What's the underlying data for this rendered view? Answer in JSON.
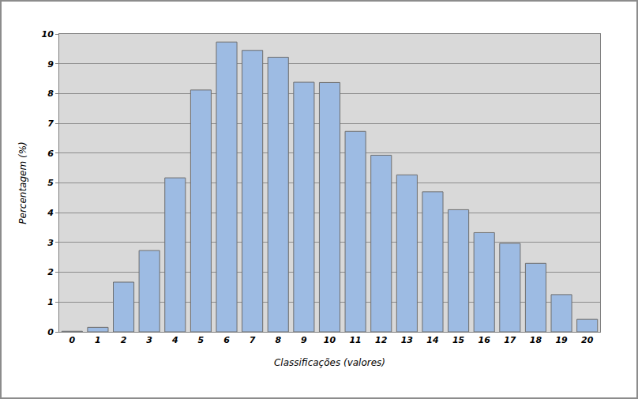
{
  "chart_data": {
    "type": "bar",
    "x_label": "Classificações (valores)",
    "y_label": "Percentagem (%)",
    "categories": [
      "0",
      "1",
      "2",
      "3",
      "4",
      "5",
      "6",
      "7",
      "8",
      "9",
      "10",
      "11",
      "12",
      "13",
      "14",
      "15",
      "16",
      "17",
      "18",
      "19",
      "20"
    ],
    "values": [
      0.02,
      0.15,
      1.67,
      2.73,
      5.17,
      8.12,
      9.73,
      9.45,
      9.22,
      8.38,
      8.37,
      6.73,
      5.93,
      5.27,
      4.7,
      4.1,
      3.33,
      2.97,
      2.3,
      1.25,
      0.42
    ],
    "color": "#9dbbe3",
    "ylim": [
      0,
      10
    ],
    "yticks": [
      0,
      1,
      2,
      3,
      4,
      5,
      6,
      7,
      8,
      9,
      10
    ],
    "grid": true
  }
}
